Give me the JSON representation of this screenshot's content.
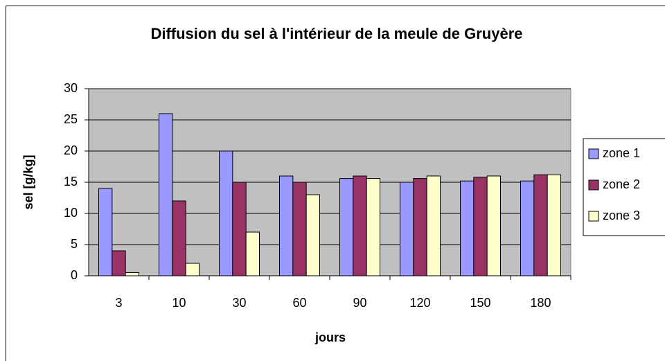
{
  "chart_data": {
    "type": "bar",
    "title": "Diffusion du sel à l'intérieur de la meule de Gruyère",
    "x_label": "jours",
    "y_label": "sel [g/kg]",
    "categories": [
      "3",
      "10",
      "30",
      "60",
      "90",
      "120",
      "150",
      "180"
    ],
    "series": [
      {
        "name": "zone 1",
        "color": "#9999ff",
        "values": [
          14,
          26,
          20,
          16,
          15.6,
          15,
          15.2,
          15.2
        ]
      },
      {
        "name": "zone 2",
        "color": "#993366",
        "values": [
          4,
          12,
          15,
          15,
          16,
          15.6,
          15.8,
          16.2
        ]
      },
      {
        "name": "zone 3",
        "color": "#ffffcc",
        "values": [
          0.5,
          2,
          7,
          13,
          15.6,
          16,
          16,
          16.2
        ]
      }
    ],
    "ylim": [
      0,
      30
    ],
    "yticks": [
      0,
      5,
      10,
      15,
      20,
      25,
      30
    ],
    "grid": true,
    "legend": "right"
  }
}
